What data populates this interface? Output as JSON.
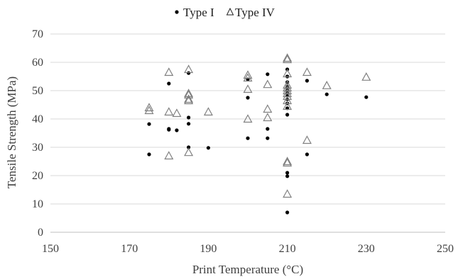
{
  "chart_data": {
    "type": "scatter",
    "title": "",
    "xlabel": "Print Temperature (°C)",
    "ylabel": "Tensile Strength (MPa)",
    "xlim": [
      150,
      250
    ],
    "ylim": [
      0,
      70
    ],
    "xticks": [
      150,
      170,
      190,
      210,
      230,
      250
    ],
    "yticks": [
      0,
      10,
      20,
      30,
      40,
      50,
      60,
      70
    ],
    "grid": "horizontal",
    "legend_position": "top",
    "colors": {
      "type_i": "#000000",
      "type_iv": "#808080",
      "grid": "#d9d9d9",
      "axis": "#bfbfbf"
    },
    "series": [
      {
        "name": "Type I",
        "marker": "dot",
        "points": [
          [
            175,
            38.2
          ],
          [
            175,
            27.5
          ],
          [
            180,
            52.5
          ],
          [
            180,
            36.5
          ],
          [
            180,
            36.2
          ],
          [
            182,
            36.0
          ],
          [
            185,
            56.2
          ],
          [
            185,
            40.5
          ],
          [
            185,
            38.3
          ],
          [
            185,
            30.0
          ],
          [
            190,
            29.8
          ],
          [
            200,
            54.0
          ],
          [
            200,
            47.5
          ],
          [
            200,
            33.2
          ],
          [
            205,
            55.8
          ],
          [
            205,
            36.5
          ],
          [
            205,
            33.2
          ],
          [
            210,
            57.5
          ],
          [
            210,
            55.0
          ],
          [
            210,
            53.0
          ],
          [
            210,
            51.5
          ],
          [
            210,
            50.5
          ],
          [
            210,
            49.5
          ],
          [
            210,
            48.5
          ],
          [
            210,
            47.0
          ],
          [
            210,
            45.5
          ],
          [
            210,
            43.8
          ],
          [
            210,
            41.5
          ],
          [
            210,
            21.0
          ],
          [
            210,
            19.8
          ],
          [
            210,
            7.0
          ],
          [
            215,
            53.5
          ],
          [
            215,
            27.5
          ],
          [
            220,
            48.7
          ],
          [
            230,
            47.7
          ]
        ]
      },
      {
        "name": "Type IV",
        "marker": "triangle-open",
        "points": [
          [
            175,
            44.0
          ],
          [
            175,
            43.0
          ],
          [
            180,
            56.5
          ],
          [
            180,
            42.5
          ],
          [
            180,
            27.0
          ],
          [
            182,
            42.0
          ],
          [
            185,
            57.5
          ],
          [
            185,
            49.0
          ],
          [
            185,
            48.5
          ],
          [
            185,
            47.0
          ],
          [
            185,
            46.5
          ],
          [
            185,
            28.2
          ],
          [
            190,
            42.5
          ],
          [
            200,
            55.5
          ],
          [
            200,
            54.5
          ],
          [
            200,
            50.5
          ],
          [
            200,
            40.0
          ],
          [
            205,
            52.2
          ],
          [
            205,
            43.5
          ],
          [
            205,
            40.5
          ],
          [
            210,
            61.5
          ],
          [
            210,
            61.0
          ],
          [
            210,
            56.0
          ],
          [
            210,
            52.0
          ],
          [
            210,
            51.0
          ],
          [
            210,
            50.0
          ],
          [
            210,
            49.0
          ],
          [
            210,
            48.0
          ],
          [
            210,
            46.5
          ],
          [
            210,
            44.5
          ],
          [
            210,
            25.0
          ],
          [
            210,
            24.5
          ],
          [
            210,
            13.5
          ],
          [
            215,
            56.5
          ],
          [
            215,
            32.5
          ],
          [
            220,
            51.8
          ],
          [
            230,
            54.8
          ]
        ]
      }
    ]
  }
}
